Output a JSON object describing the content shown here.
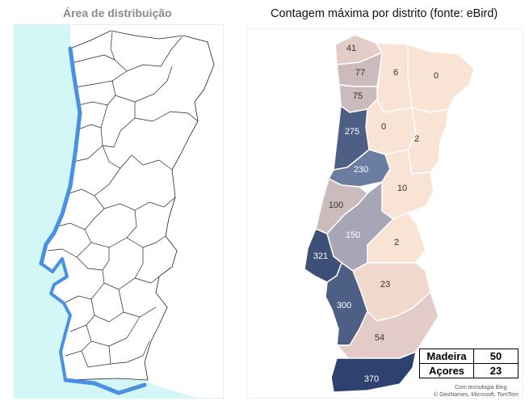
{
  "left_panel": {
    "title": "Área de distribuição"
  },
  "right_panel": {
    "title": "Contagem máxima por distrito (fonte: eBird)",
    "districts": [
      {
        "id": "viana-do-castelo",
        "value": "41"
      },
      {
        "id": "braga",
        "value": "77"
      },
      {
        "id": "vila-real",
        "value": "6"
      },
      {
        "id": "braganca",
        "value": "0"
      },
      {
        "id": "porto",
        "value": "75"
      },
      {
        "id": "aveiro",
        "value": "275"
      },
      {
        "id": "viseu",
        "value": "0"
      },
      {
        "id": "guarda",
        "value": "2"
      },
      {
        "id": "coimbra",
        "value": "230"
      },
      {
        "id": "castelo-branco",
        "value": "10"
      },
      {
        "id": "leiria",
        "value": "100"
      },
      {
        "id": "santarem",
        "value": "150"
      },
      {
        "id": "portalegre",
        "value": "2"
      },
      {
        "id": "lisboa",
        "value": "321"
      },
      {
        "id": "evora",
        "value": "23"
      },
      {
        "id": "setubal",
        "value": "300"
      },
      {
        "id": "beja",
        "value": "54"
      },
      {
        "id": "faro",
        "value": "370"
      }
    ],
    "islands": [
      {
        "name": "Madeira",
        "value": "50"
      },
      {
        "name": "Açores",
        "value": "23"
      }
    ],
    "credit_line1": "Com tecnologia Bing",
    "credit_line2": "© GeoNames, Microsoft, TomTom"
  },
  "colors": {
    "sea": "#d3f6f7",
    "range": "#4a90e2",
    "district_border": "#ffffff",
    "scale_low": "#f7e2d6",
    "scale_high": "#2f416e"
  }
}
